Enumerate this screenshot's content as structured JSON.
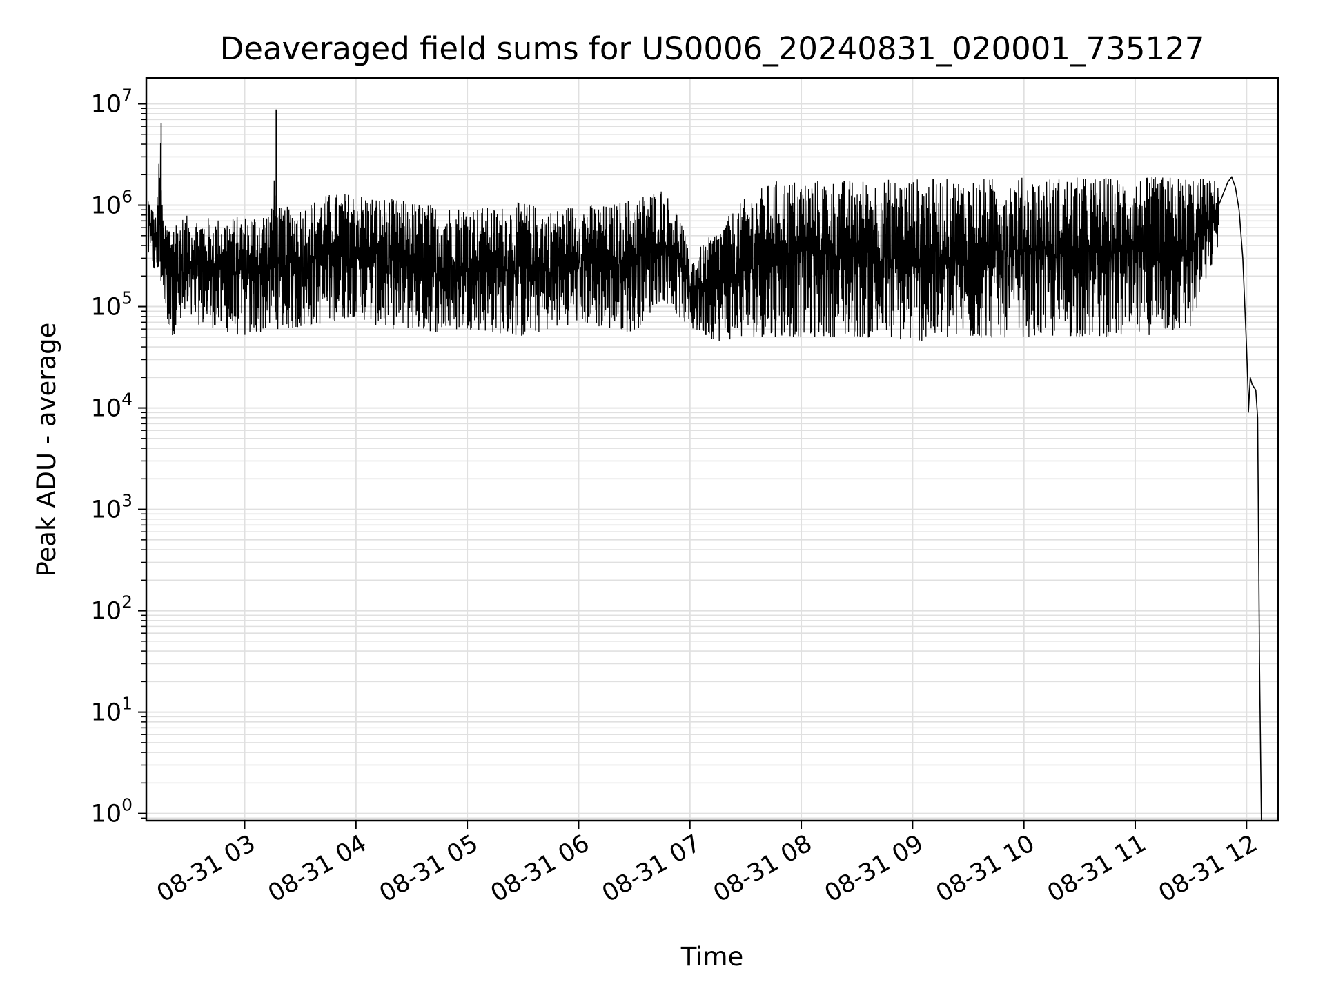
{
  "chart_data": {
    "type": "line",
    "title": "Deaveraged field sums for US0006_20240831_020001_735127",
    "xlabel": "Time",
    "ylabel": "Peak ADU - average",
    "y_scale": "log",
    "ylim": [
      0.85,
      18000000
    ],
    "xlim": [
      "2024-08-31 02:07",
      "2024-08-31 12:17"
    ],
    "grid": true,
    "line_color": "#000000",
    "grid_color": "#e0e0e0",
    "x_ticks": [
      "2024-08-31 03:00",
      "2024-08-31 04:00",
      "2024-08-31 05:00",
      "2024-08-31 06:00",
      "2024-08-31 07:00",
      "2024-08-31 08:00",
      "2024-08-31 09:00",
      "2024-08-31 10:00",
      "2024-08-31 11:00",
      "2024-08-31 12:00"
    ],
    "x_tick_labels": [
      "08-31 03",
      "08-31 04",
      "08-31 05",
      "08-31 06",
      "08-31 07",
      "08-31 08",
      "08-31 09",
      "08-31 10",
      "08-31 11",
      "08-31 12"
    ],
    "y_ticks": [
      1,
      10,
      100,
      1000,
      10000,
      100000,
      1000000,
      10000000
    ],
    "y_tick_labels": [
      {
        "base": "10",
        "exp": "0"
      },
      {
        "base": "10",
        "exp": "1"
      },
      {
        "base": "10",
        "exp": "2"
      },
      {
        "base": "10",
        "exp": "3"
      },
      {
        "base": "10",
        "exp": "4"
      },
      {
        "base": "10",
        "exp": "5"
      },
      {
        "base": "10",
        "exp": "6"
      },
      {
        "base": "10",
        "exp": "7"
      }
    ],
    "series": [
      {
        "envelope": {
          "note": "dense series approximated as upper/lower envelopes",
          "upper": [
            [
              "2024-08-31 02:08",
              1300000
            ],
            [
              "2024-08-31 02:12",
              800000
            ],
            [
              "2024-08-31 02:15",
              6500000
            ],
            [
              "2024-08-31 02:16",
              700000
            ],
            [
              "2024-08-31 02:30",
              800000
            ],
            [
              "2024-08-31 02:45",
              750000
            ],
            [
              "2024-08-31 03:00",
              800000
            ],
            [
              "2024-08-31 03:15",
              950000
            ],
            [
              "2024-08-31 03:17",
              8800000
            ],
            [
              "2024-08-31 03:18",
              950000
            ],
            [
              "2024-08-31 03:30",
              1000000
            ],
            [
              "2024-08-31 03:45",
              1300000
            ],
            [
              "2024-08-31 04:00",
              1350000
            ],
            [
              "2024-08-31 04:15",
              1200000
            ],
            [
              "2024-08-31 04:30",
              1100000
            ],
            [
              "2024-08-31 04:45",
              1000000
            ],
            [
              "2024-08-31 05:00",
              1000000
            ],
            [
              "2024-08-31 05:15",
              950000
            ],
            [
              "2024-08-31 05:30",
              1100000
            ],
            [
              "2024-08-31 05:45",
              900000
            ],
            [
              "2024-08-31 06:00",
              1050000
            ],
            [
              "2024-08-31 06:15",
              1000000
            ],
            [
              "2024-08-31 06:30",
              1200000
            ],
            [
              "2024-08-31 06:45",
              1500000
            ],
            [
              "2024-08-31 06:55",
              800000
            ],
            [
              "2024-08-31 07:00",
              300000
            ],
            [
              "2024-08-31 07:15",
              600000
            ],
            [
              "2024-08-31 07:30",
              1200000
            ],
            [
              "2024-08-31 07:45",
              1750000
            ],
            [
              "2024-08-31 08:00",
              1800000
            ],
            [
              "2024-08-31 08:30",
              1800000
            ],
            [
              "2024-08-31 09:00",
              1850000
            ],
            [
              "2024-08-31 09:30",
              1850000
            ],
            [
              "2024-08-31 10:00",
              1900000
            ],
            [
              "2024-08-31 10:30",
              1900000
            ],
            [
              "2024-08-31 11:00",
              1900000
            ],
            [
              "2024-08-31 11:30",
              1950000
            ],
            [
              "2024-08-31 11:45",
              1750000
            ]
          ],
          "lower": [
            [
              "2024-08-31 02:08",
              300000
            ],
            [
              "2024-08-31 02:15",
              150000
            ],
            [
              "2024-08-31 02:20",
              50000
            ],
            [
              "2024-08-31 02:30",
              70000
            ],
            [
              "2024-08-31 02:45",
              60000
            ],
            [
              "2024-08-31 03:00",
              50000
            ],
            [
              "2024-08-31 03:15",
              60000
            ],
            [
              "2024-08-31 03:30",
              60000
            ],
            [
              "2024-08-31 03:45",
              70000
            ],
            [
              "2024-08-31 04:00",
              80000
            ],
            [
              "2024-08-31 04:15",
              60000
            ],
            [
              "2024-08-31 04:30",
              60000
            ],
            [
              "2024-08-31 04:45",
              55000
            ],
            [
              "2024-08-31 05:00",
              60000
            ],
            [
              "2024-08-31 05:15",
              55000
            ],
            [
              "2024-08-31 05:30",
              50000
            ],
            [
              "2024-08-31 05:45",
              60000
            ],
            [
              "2024-08-31 06:00",
              70000
            ],
            [
              "2024-08-31 06:15",
              60000
            ],
            [
              "2024-08-31 06:30",
              55000
            ],
            [
              "2024-08-31 06:45",
              120000
            ],
            [
              "2024-08-31 07:00",
              60000
            ],
            [
              "2024-08-31 07:15",
              45000
            ],
            [
              "2024-08-31 07:30",
              50000
            ],
            [
              "2024-08-31 08:00",
              50000
            ],
            [
              "2024-08-31 08:30",
              50000
            ],
            [
              "2024-08-31 09:00",
              45000
            ],
            [
              "2024-08-31 09:30",
              48000
            ],
            [
              "2024-08-31 10:00",
              50000
            ],
            [
              "2024-08-31 10:30",
              50000
            ],
            [
              "2024-08-31 11:00",
              50000
            ],
            [
              "2024-08-31 11:30",
              60000
            ],
            [
              "2024-08-31 11:45",
              400000
            ]
          ]
        },
        "tail": [
          [
            "2024-08-31 11:45",
            1000000
          ],
          [
            "2024-08-31 11:50",
            1700000
          ],
          [
            "2024-08-31 11:52",
            1900000
          ],
          [
            "2024-08-31 11:54",
            1500000
          ],
          [
            "2024-08-31 11:56",
            900000
          ],
          [
            "2024-08-31 11:58",
            300000
          ],
          [
            "2024-08-31 12:00",
            40000
          ],
          [
            "2024-08-31 12:01",
            12000
          ],
          [
            "2024-08-31 12:01",
            9000
          ],
          [
            "2024-08-31 12:02",
            20000
          ],
          [
            "2024-08-31 12:03",
            17000
          ],
          [
            "2024-08-31 12:05",
            15000
          ],
          [
            "2024-08-31 12:06",
            8000
          ],
          [
            "2024-08-31 12:07",
            30
          ],
          [
            "2024-08-31 12:08",
            0.85
          ]
        ]
      }
    ]
  }
}
